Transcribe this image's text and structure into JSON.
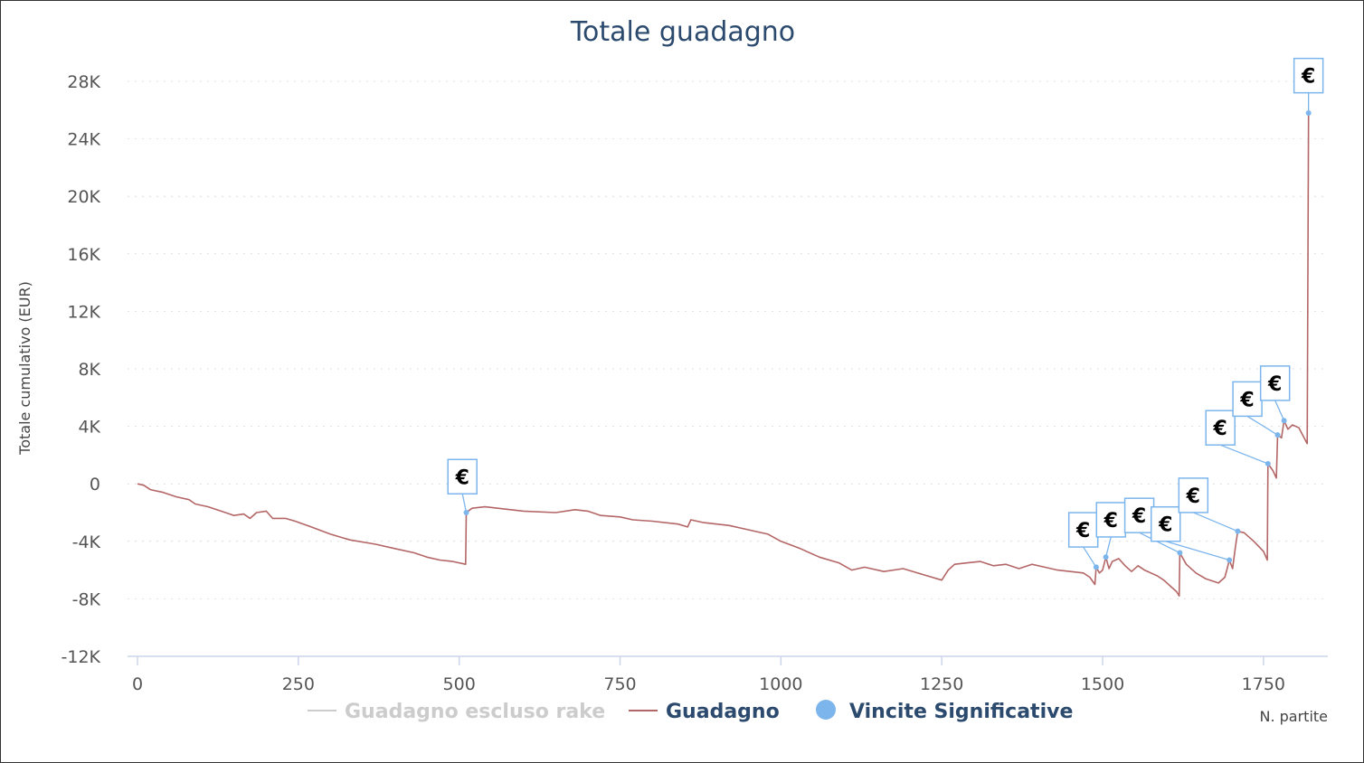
{
  "chart_data": {
    "type": "line",
    "title": "Totale guadagno",
    "ylabel": "Totale cumulativo (EUR)",
    "xlabel": "N. partite",
    "xlim": [
      0,
      1850
    ],
    "ylim": [
      -12000,
      28000
    ],
    "x_ticks": [
      {
        "value": 0,
        "label": "0"
      },
      {
        "value": 250,
        "label": "250"
      },
      {
        "value": 500,
        "label": "500"
      },
      {
        "value": 750,
        "label": "750"
      },
      {
        "value": 1000,
        "label": "1000"
      },
      {
        "value": 1250,
        "label": "1250"
      },
      {
        "value": 1500,
        "label": "1500"
      },
      {
        "value": 1750,
        "label": "1750"
      }
    ],
    "y_ticks": [
      {
        "value": 28000,
        "label": "28K"
      },
      {
        "value": 24000,
        "label": "24K"
      },
      {
        "value": 20000,
        "label": "20K"
      },
      {
        "value": 16000,
        "label": "16K"
      },
      {
        "value": 12000,
        "label": "12K"
      },
      {
        "value": 8000,
        "label": "8K"
      },
      {
        "value": 4000,
        "label": "4K"
      },
      {
        "value": 0,
        "label": "0"
      },
      {
        "value": -4000,
        "label": "-4K"
      },
      {
        "value": -8000,
        "label": "-8K"
      },
      {
        "value": -12000,
        "label": "-12K"
      }
    ],
    "grid": true,
    "legend_position": "bottom",
    "legend": [
      {
        "name": "Guadagno escluso rake",
        "marker": "line",
        "color": "#cccccc",
        "text_color": "#cccccc"
      },
      {
        "name": "Guadagno",
        "marker": "line",
        "color": "#b46666",
        "text_color": "#2b4a6e"
      },
      {
        "name": "Vincite Significative",
        "marker": "dot",
        "color": "#7cb5ec",
        "text_color": "#2b4a6e"
      }
    ],
    "series": [
      {
        "name": "Guadagno",
        "color": "#b46666",
        "points": [
          [
            0,
            0
          ],
          [
            10,
            -100
          ],
          [
            20,
            -400
          ],
          [
            40,
            -600
          ],
          [
            60,
            -900
          ],
          [
            80,
            -1100
          ],
          [
            90,
            -1400
          ],
          [
            110,
            -1600
          ],
          [
            130,
            -1900
          ],
          [
            150,
            -2200
          ],
          [
            165,
            -2100
          ],
          [
            175,
            -2400
          ],
          [
            185,
            -2000
          ],
          [
            200,
            -1900
          ],
          [
            210,
            -2400
          ],
          [
            230,
            -2400
          ],
          [
            245,
            -2600
          ],
          [
            270,
            -3000
          ],
          [
            300,
            -3500
          ],
          [
            330,
            -3900
          ],
          [
            370,
            -4200
          ],
          [
            400,
            -4500
          ],
          [
            430,
            -4800
          ],
          [
            450,
            -5100
          ],
          [
            470,
            -5300
          ],
          [
            490,
            -5400
          ],
          [
            510,
            -5600
          ],
          [
            511,
            -2000
          ],
          [
            520,
            -1700
          ],
          [
            540,
            -1600
          ],
          [
            560,
            -1700
          ],
          [
            600,
            -1900
          ],
          [
            650,
            -2000
          ],
          [
            680,
            -1800
          ],
          [
            700,
            -1900
          ],
          [
            720,
            -2200
          ],
          [
            750,
            -2300
          ],
          [
            770,
            -2500
          ],
          [
            800,
            -2600
          ],
          [
            840,
            -2800
          ],
          [
            855,
            -3000
          ],
          [
            860,
            -2500
          ],
          [
            880,
            -2700
          ],
          [
            900,
            -2800
          ],
          [
            920,
            -2900
          ],
          [
            950,
            -3200
          ],
          [
            980,
            -3500
          ],
          [
            1000,
            -4000
          ],
          [
            1030,
            -4500
          ],
          [
            1060,
            -5100
          ],
          [
            1090,
            -5500
          ],
          [
            1110,
            -6000
          ],
          [
            1130,
            -5800
          ],
          [
            1160,
            -6100
          ],
          [
            1190,
            -5900
          ],
          [
            1220,
            -6300
          ],
          [
            1250,
            -6700
          ],
          [
            1260,
            -6000
          ],
          [
            1270,
            -5600
          ],
          [
            1290,
            -5500
          ],
          [
            1310,
            -5400
          ],
          [
            1330,
            -5700
          ],
          [
            1350,
            -5600
          ],
          [
            1370,
            -5900
          ],
          [
            1390,
            -5600
          ],
          [
            1410,
            -5800
          ],
          [
            1430,
            -6000
          ],
          [
            1450,
            -6100
          ],
          [
            1470,
            -6200
          ],
          [
            1480,
            -6500
          ],
          [
            1488,
            -7000
          ],
          [
            1490,
            -5800
          ],
          [
            1495,
            -6200
          ],
          [
            1500,
            -6000
          ],
          [
            1505,
            -5100
          ],
          [
            1510,
            -5900
          ],
          [
            1515,
            -5400
          ],
          [
            1525,
            -5200
          ],
          [
            1535,
            -5700
          ],
          [
            1545,
            -6100
          ],
          [
            1555,
            -5700
          ],
          [
            1565,
            -6000
          ],
          [
            1575,
            -6200
          ],
          [
            1585,
            -6400
          ],
          [
            1595,
            -6700
          ],
          [
            1605,
            -7100
          ],
          [
            1615,
            -7500
          ],
          [
            1619,
            -7800
          ],
          [
            1620,
            -4800
          ],
          [
            1630,
            -5600
          ],
          [
            1645,
            -6200
          ],
          [
            1660,
            -6600
          ],
          [
            1680,
            -6900
          ],
          [
            1690,
            -6500
          ],
          [
            1697,
            -5300
          ],
          [
            1702,
            -5900
          ],
          [
            1706,
            -4500
          ],
          [
            1710,
            -3300
          ],
          [
            1720,
            -3400
          ],
          [
            1735,
            -4000
          ],
          [
            1750,
            -4700
          ],
          [
            1756,
            -5300
          ],
          [
            1757,
            1400
          ],
          [
            1765,
            900
          ],
          [
            1770,
            400
          ],
          [
            1772,
            3400
          ],
          [
            1778,
            3200
          ],
          [
            1782,
            4400
          ],
          [
            1788,
            3800
          ],
          [
            1795,
            4100
          ],
          [
            1805,
            3900
          ],
          [
            1812,
            3300
          ],
          [
            1818,
            2800
          ],
          [
            1820,
            25800
          ]
        ]
      }
    ],
    "significant_wins": {
      "name": "Vincite Significative",
      "color": "#7cb5ec",
      "flag_text": "€",
      "points": [
        {
          "x": 511,
          "y": -2000,
          "flag_x": 505,
          "flag_y": 500
        },
        {
          "x": 1490,
          "y": -5800,
          "flag_x": 1470,
          "flag_y": -3200
        },
        {
          "x": 1505,
          "y": -5100,
          "flag_x": 1513,
          "flag_y": -2500
        },
        {
          "x": 1620,
          "y": -4800,
          "flag_x": 1557,
          "flag_y": -2200
        },
        {
          "x": 1697,
          "y": -5300,
          "flag_x": 1598,
          "flag_y": -2800
        },
        {
          "x": 1710,
          "y": -3300,
          "flag_x": 1641,
          "flag_y": -800
        },
        {
          "x": 1757,
          "y": 1400,
          "flag_x": 1683,
          "flag_y": 3900
        },
        {
          "x": 1772,
          "y": 3400,
          "flag_x": 1725,
          "flag_y": 5900
        },
        {
          "x": 1782,
          "y": 4400,
          "flag_x": 1768,
          "flag_y": 7000
        },
        {
          "x": 1820,
          "y": 25800,
          "flag_x": 1820,
          "flag_y": 28400
        }
      ]
    }
  }
}
